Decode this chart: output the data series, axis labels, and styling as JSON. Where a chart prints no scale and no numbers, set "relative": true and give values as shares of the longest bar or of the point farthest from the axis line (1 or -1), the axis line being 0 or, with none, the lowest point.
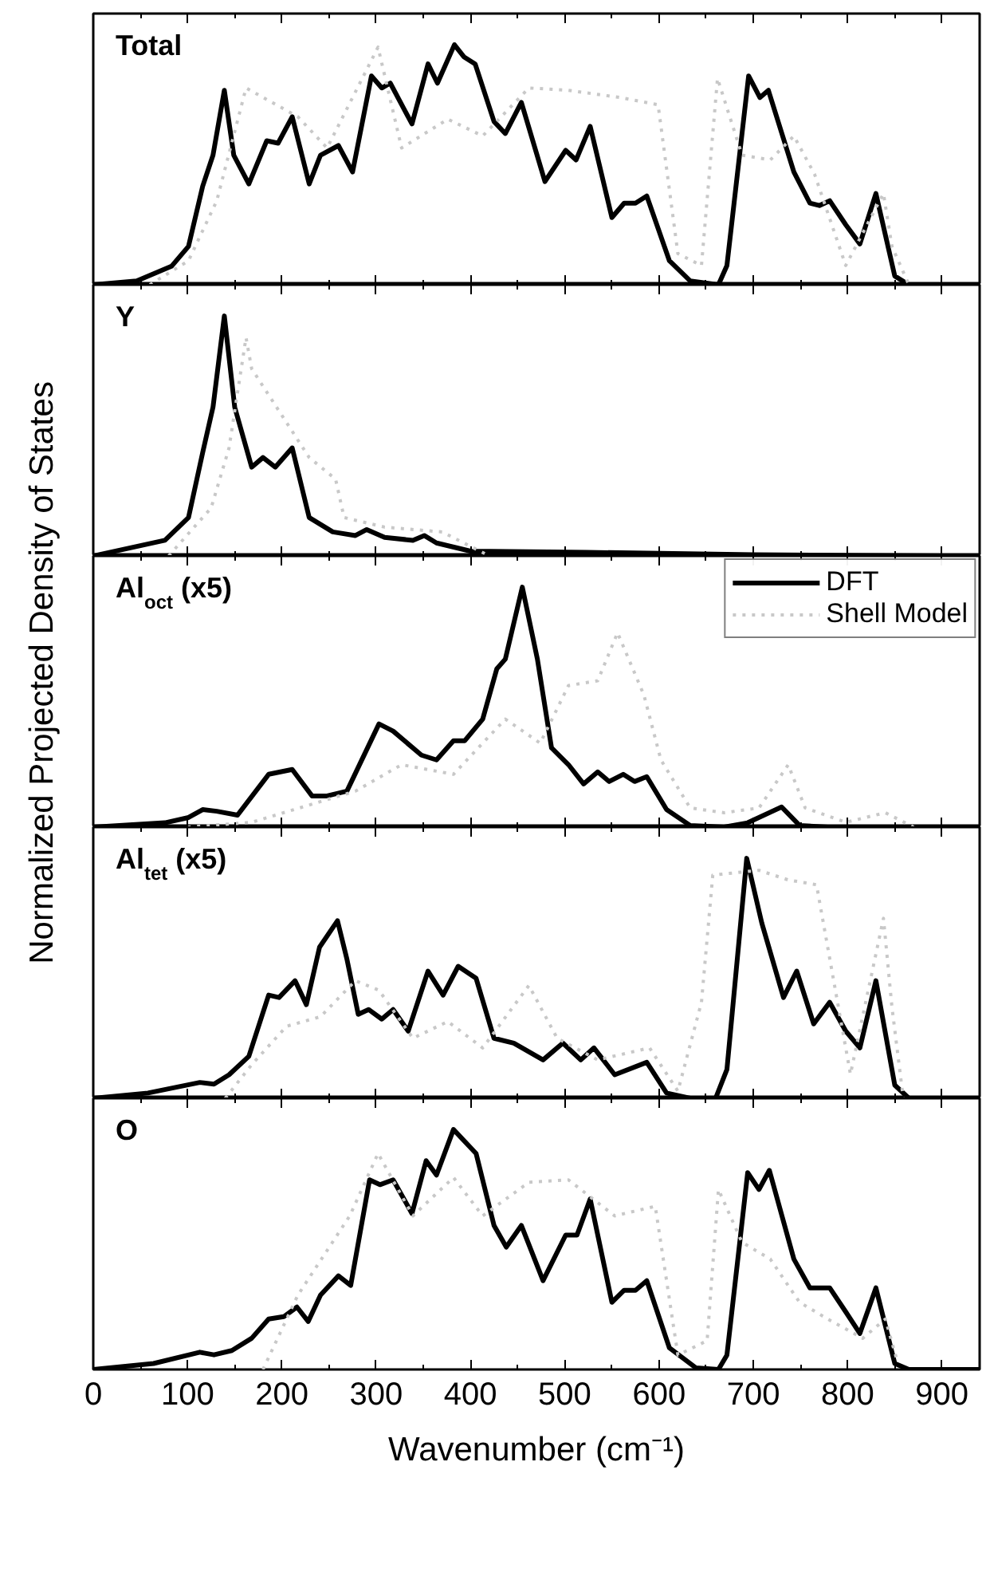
{
  "chart_data": [
    {
      "type": "line",
      "title": "Total",
      "relative": true,
      "xlim": [
        0,
        940
      ],
      "xticks": [
        0,
        100,
        200,
        300,
        400,
        500,
        600,
        700,
        800,
        900
      ],
      "tick_labels": false,
      "grid": false,
      "legend": false,
      "series": [
        {
          "color": "#000000",
          "line_style": "solid",
          "x": [
            0,
            46,
            83,
            101,
            116,
            127,
            139,
            149,
            165,
            184,
            196,
            211,
            229,
            241,
            260,
            275,
            295,
            306,
            315,
            338,
            355,
            365,
            383,
            393,
            405,
            425,
            437,
            454,
            479,
            501,
            512,
            527,
            550,
            563,
            575,
            587,
            611,
            633,
            663,
            672,
            695,
            707,
            716,
            743,
            760,
            770,
            781,
            798,
            813,
            830,
            850,
            865,
            940
          ],
          "values": [
            0,
            0.016,
            0.077,
            0.16,
            0.41,
            0.54,
            0.81,
            0.54,
            0.42,
            0.6,
            0.59,
            0.7,
            0.42,
            0.54,
            0.58,
            0.47,
            0.87,
            0.82,
            0.84,
            0.67,
            0.92,
            0.84,
            1.0,
            0.95,
            0.92,
            0.68,
            0.63,
            0.76,
            0.43,
            0.56,
            0.52,
            0.66,
            0.28,
            0.34,
            0.34,
            0.37,
            0.1,
            0.016,
            0,
            0.08,
            0.87,
            0.78,
            0.81,
            0.47,
            0.34,
            0.33,
            0.35,
            0.25,
            0.17,
            0.38,
            0.036,
            0,
            0
          ]
        },
        {
          "color": "#c8c8c8",
          "line_style": "dotted",
          "x": [
            60,
            101,
            131,
            162,
            217,
            248,
            302,
            327,
            376,
            413,
            462,
            504,
            559,
            599,
            620,
            645,
            662,
            688,
            718,
            743,
            765,
            798,
            838,
            847,
            865
          ],
          "values": [
            0,
            0.1,
            0.35,
            0.82,
            0.7,
            0.57,
            0.99,
            0.57,
            0.69,
            0.62,
            0.82,
            0.81,
            0.78,
            0.75,
            0.13,
            0.08,
            0.86,
            0.54,
            0.52,
            0.62,
            0.46,
            0.08,
            0.38,
            0.16,
            0
          ]
        }
      ]
    },
    {
      "type": "line",
      "title": "Y",
      "relative": true,
      "xlim": [
        0,
        940
      ],
      "xticks": [
        0,
        100,
        200,
        300,
        400,
        500,
        600,
        700,
        800,
        900
      ],
      "tick_labels": false,
      "grid": false,
      "legend": false,
      "series": [
        {
          "color": "#000000",
          "line_style": "solid",
          "x": [
            0,
            76,
            101,
            116,
            127,
            139,
            150,
            168,
            180,
            193,
            211,
            229,
            254,
            278,
            290,
            309,
            339,
            351,
            364,
            400,
            523,
            700,
            900,
            940
          ],
          "values": [
            0,
            0.065,
            0.16,
            0.43,
            0.62,
            1.0,
            0.62,
            0.37,
            0.41,
            0.37,
            0.45,
            0.16,
            0.1,
            0.085,
            0.11,
            0.077,
            0.065,
            0.085,
            0.054,
            0.02,
            0.015,
            0.005,
            0,
            0
          ]
        },
        {
          "color": "#c8c8c8",
          "line_style": "dotted",
          "x": [
            80,
            125,
            144,
            162,
            168,
            229,
            257,
            266,
            309,
            370,
            420
          ],
          "values": [
            0,
            0.2,
            0.45,
            0.91,
            0.78,
            0.41,
            0.32,
            0.16,
            0.12,
            0.1,
            0
          ]
        }
      ]
    },
    {
      "type": "line",
      "title": "Al$_{oct}$ (x5)",
      "ylabel": "Normalized Projected Density of States",
      "relative": true,
      "xlim": [
        0,
        940
      ],
      "xticks": [
        0,
        100,
        200,
        300,
        400,
        500,
        600,
        700,
        800,
        900
      ],
      "tick_labels": false,
      "grid": false,
      "legend": "top right",
      "series": [
        {
          "name": "DFT",
          "color": "#000000",
          "line_style": "solid",
          "x": [
            0,
            76,
            101,
            116,
            131,
            153,
            186,
            211,
            232,
            248,
            269,
            303,
            318,
            348,
            364,
            382,
            394,
            413,
            428,
            437,
            455,
            471,
            486,
            504,
            520,
            535,
            547,
            562,
            574,
            587,
            608,
            633,
            669,
            694,
            730,
            749,
            779,
            940
          ],
          "values": [
            0,
            0.018,
            0.04,
            0.073,
            0.066,
            0.05,
            0.22,
            0.24,
            0.13,
            0.13,
            0.15,
            0.43,
            0.4,
            0.3,
            0.28,
            0.36,
            0.36,
            0.45,
            0.66,
            0.7,
            1.0,
            0.7,
            0.33,
            0.26,
            0.18,
            0.23,
            0.19,
            0.22,
            0.19,
            0.21,
            0.073,
            0.007,
            0,
            0.018,
            0.084,
            0.007,
            0,
            0
          ]
        },
        {
          "name": "Shell Model",
          "color": "#c8c8c8",
          "line_style": "dotted",
          "x": [
            100,
            168,
            278,
            327,
            382,
            437,
            474,
            504,
            535,
            556,
            584,
            602,
            633,
            669,
            706,
            737,
            755,
            798,
            840,
            870
          ],
          "values": [
            0,
            0.02,
            0.15,
            0.26,
            0.22,
            0.45,
            0.35,
            0.59,
            0.61,
            0.81,
            0.55,
            0.28,
            0.08,
            0.06,
            0.08,
            0.26,
            0.08,
            0.02,
            0.06,
            0
          ]
        }
      ]
    },
    {
      "type": "line",
      "title": "Al$_{tet}$ (x5)",
      "relative": true,
      "xlim": [
        0,
        940
      ],
      "xticks": [
        0,
        100,
        200,
        300,
        400,
        500,
        600,
        700,
        800,
        900
      ],
      "tick_labels": false,
      "grid": false,
      "legend": false,
      "series": [
        {
          "color": "#000000",
          "line_style": "solid",
          "x": [
            0,
            58,
            113,
            128,
            144,
            165,
            186,
            197,
            214,
            226,
            240,
            259,
            269,
            281,
            292,
            306,
            318,
            334,
            355,
            371,
            387,
            406,
            425,
            446,
            477,
            498,
            517,
            531,
            553,
            587,
            608,
            633,
            660,
            672,
            693,
            709,
            732,
            746,
            764,
            781,
            798,
            813,
            830,
            850,
            865,
            940
          ],
          "values": [
            0,
            0.022,
            0.066,
            0.059,
            0.098,
            0.175,
            0.43,
            0.42,
            0.49,
            0.39,
            0.63,
            0.74,
            0.58,
            0.35,
            0.37,
            0.33,
            0.37,
            0.28,
            0.53,
            0.43,
            0.55,
            0.5,
            0.25,
            0.23,
            0.16,
            0.23,
            0.16,
            0.21,
            0.098,
            0.15,
            0.022,
            0,
            0,
            0.12,
            1.0,
            0.73,
            0.42,
            0.53,
            0.31,
            0.4,
            0.28,
            0.21,
            0.49,
            0.055,
            0,
            0
          ]
        },
        {
          "color": "#c8c8c8",
          "line_style": "dotted",
          "x": [
            140,
            168,
            205,
            241,
            278,
            303,
            339,
            376,
            413,
            462,
            492,
            535,
            590,
            620,
            645,
            657,
            706,
            737,
            767,
            803,
            838,
            847,
            859
          ],
          "values": [
            0,
            0.14,
            0.3,
            0.34,
            0.49,
            0.45,
            0.25,
            0.32,
            0.21,
            0.47,
            0.25,
            0.16,
            0.21,
            0.03,
            0.4,
            0.93,
            0.95,
            0.91,
            0.89,
            0.1,
            0.75,
            0.38,
            0
          ]
        }
      ]
    },
    {
      "type": "line",
      "title": "O",
      "xlabel": "Wavenumber (cm⁻¹)",
      "relative": true,
      "xlim": [
        0,
        940
      ],
      "xticks": [
        0,
        100,
        200,
        300,
        400,
        500,
        600,
        700,
        800,
        900
      ],
      "grid": false,
      "legend": false,
      "series": [
        {
          "color": "#000000",
          "line_style": "solid",
          "x": [
            0,
            64,
            113,
            128,
            147,
            168,
            186,
            202,
            216,
            228,
            241,
            260,
            273,
            293,
            304,
            318,
            338,
            353,
            364,
            382,
            406,
            425,
            438,
            454,
            477,
            501,
            513,
            527,
            550,
            563,
            575,
            587,
            611,
            639,
            663,
            672,
            694,
            706,
            717,
            743,
            760,
            770,
            781,
            798,
            813,
            830,
            850,
            865,
            940
          ],
          "values": [
            0,
            0.025,
            0.072,
            0.061,
            0.079,
            0.13,
            0.21,
            0.22,
            0.26,
            0.2,
            0.31,
            0.39,
            0.35,
            0.79,
            0.77,
            0.79,
            0.65,
            0.87,
            0.81,
            1.0,
            0.9,
            0.6,
            0.51,
            0.6,
            0.37,
            0.56,
            0.56,
            0.71,
            0.28,
            0.33,
            0.33,
            0.37,
            0.09,
            0.007,
            0,
            0.06,
            0.82,
            0.75,
            0.83,
            0.46,
            0.34,
            0.34,
            0.34,
            0.24,
            0.15,
            0.34,
            0.025,
            0,
            0
          ]
        },
        {
          "color": "#c8c8c8",
          "line_style": "dotted",
          "x": [
            180,
            217,
            272,
            302,
            339,
            382,
            413,
            462,
            504,
            553,
            596,
            620,
            651,
            663,
            688,
            718,
            749,
            779,
            816,
            840,
            853
          ],
          "values": [
            0,
            0.31,
            0.64,
            0.9,
            0.64,
            0.8,
            0.64,
            0.78,
            0.79,
            0.64,
            0.68,
            0.06,
            0.12,
            0.75,
            0.53,
            0.46,
            0.28,
            0.21,
            0.13,
            0.21,
            0.03
          ]
        }
      ]
    }
  ]
}
